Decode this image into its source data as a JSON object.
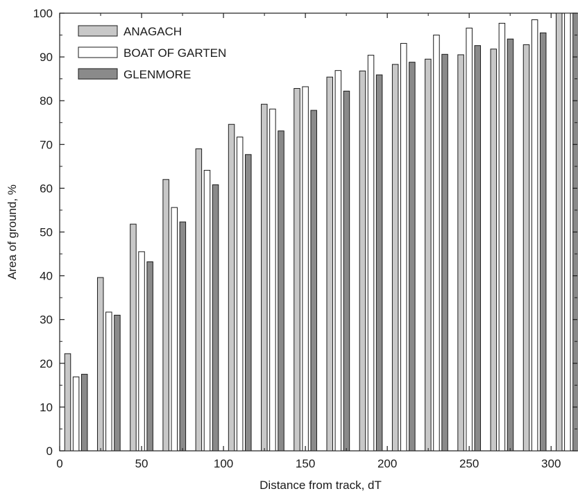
{
  "chart_data": {
    "type": "bar",
    "title": "",
    "xlabel": "Distance from track, dT",
    "ylabel": "Area of ground, %",
    "xlim": [
      0,
      316
    ],
    "ylim": [
      0,
      100
    ],
    "x_ticks": [
      0,
      50,
      100,
      150,
      200,
      250,
      300
    ],
    "y_ticks": [
      0,
      10,
      20,
      30,
      40,
      50,
      60,
      70,
      80,
      90,
      100
    ],
    "legend_position": "top-left",
    "grid": false,
    "categories": [
      10,
      30,
      50,
      70,
      90,
      110,
      130,
      150,
      170,
      190,
      210,
      230,
      250,
      270,
      290,
      310
    ],
    "series": [
      {
        "name": "ANAGACH",
        "color": "#c8c8c8",
        "values": [
          22.2,
          39.6,
          51.8,
          62.0,
          69.0,
          74.6,
          79.2,
          82.8,
          85.4,
          86.8,
          88.3,
          89.5,
          90.5,
          91.8,
          92.8,
          100
        ]
      },
      {
        "name": "BOAT OF GARTEN",
        "color": "#ffffff",
        "values": [
          16.9,
          31.7,
          45.5,
          55.6,
          64.1,
          71.7,
          78.1,
          83.2,
          86.9,
          90.4,
          93.1,
          95.0,
          96.6,
          97.7,
          98.5,
          100
        ]
      },
      {
        "name": "GLENMORE",
        "color": "#8a8a8a",
        "values": [
          17.5,
          31.0,
          43.2,
          52.3,
          60.8,
          67.7,
          73.1,
          77.8,
          82.2,
          85.9,
          88.8,
          90.6,
          92.6,
          94.1,
          95.5,
          100
        ]
      }
    ]
  }
}
